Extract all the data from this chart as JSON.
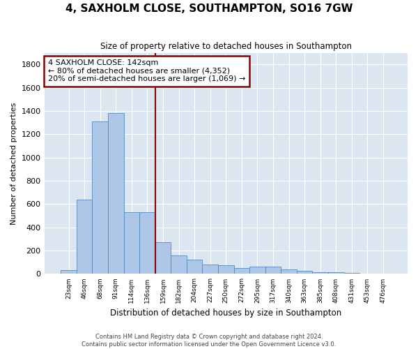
{
  "title": "4, SAXHOLM CLOSE, SOUTHAMPTON, SO16 7GW",
  "subtitle": "Size of property relative to detached houses in Southampton",
  "xlabel": "Distribution of detached houses by size in Southampton",
  "ylabel": "Number of detached properties",
  "categories": [
    "23sqm",
    "46sqm",
    "68sqm",
    "91sqm",
    "114sqm",
    "136sqm",
    "159sqm",
    "182sqm",
    "204sqm",
    "227sqm",
    "250sqm",
    "272sqm",
    "295sqm",
    "317sqm",
    "340sqm",
    "363sqm",
    "385sqm",
    "408sqm",
    "431sqm",
    "453sqm",
    "476sqm"
  ],
  "values": [
    35,
    640,
    1310,
    1380,
    530,
    530,
    270,
    160,
    120,
    80,
    75,
    50,
    60,
    60,
    40,
    25,
    15,
    15,
    10,
    5,
    5
  ],
  "bar_color": "#aec6e8",
  "bar_edge_color": "#5588bb",
  "vline_x_index": 5,
  "vline_color": "#8b0000",
  "annotation_box_text": "4 SAXHOLM CLOSE: 142sqm\n← 80% of detached houses are smaller (4,352)\n20% of semi-detached houses are larger (1,069) →",
  "annotation_box_color": "#8b0000",
  "annotation_box_bg": "#ffffff",
  "ylim": [
    0,
    1900
  ],
  "yticks": [
    0,
    200,
    400,
    600,
    800,
    1000,
    1200,
    1400,
    1600,
    1800
  ],
  "background_color": "#dce6f0",
  "footer_line1": "Contains HM Land Registry data © Crown copyright and database right 2024.",
  "footer_line2": "Contains public sector information licensed under the Open Government Licence v3.0."
}
